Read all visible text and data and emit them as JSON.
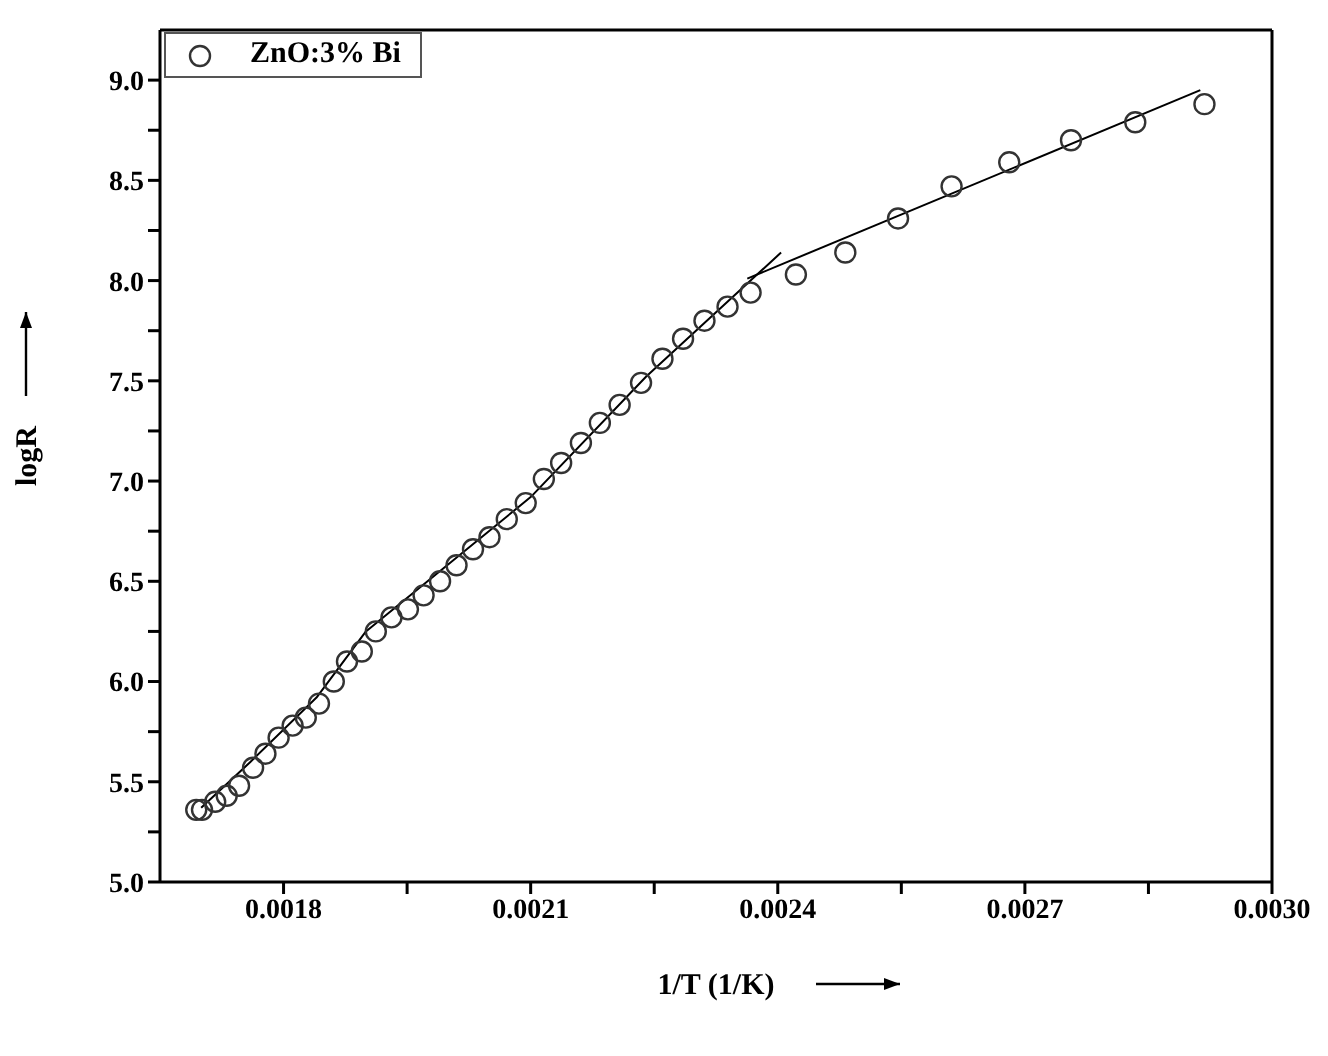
{
  "chart_data": {
    "type": "scatter",
    "xlabel": "1/T (1/K)",
    "ylabel": "logR",
    "legend": "top left",
    "marker": "circle",
    "xlim": [
      0.00165,
      0.003
    ],
    "xticks": [
      0.0018,
      {
        "value": 0.00195,
        "label": null
      },
      0.0021,
      {
        "value": 0.00225,
        "label": null
      },
      0.0024,
      {
        "value": 0.00255,
        "label": null
      },
      0.0027,
      {
        "value": 0.00285,
        "label": null
      },
      {
        "value": 0.003,
        "label": "0.0030"
      }
    ],
    "ylim": [
      5,
      9.25
    ],
    "yticks": [
      {
        "value": 5,
        "label": "5.0"
      },
      {
        "value": 5.25,
        "label": null
      },
      5.5,
      {
        "value": 5.75,
        "label": null
      },
      {
        "value": 6,
        "label": "6.0"
      },
      {
        "value": 6.25,
        "label": null
      },
      6.5,
      {
        "value": 6.75,
        "label": null
      },
      {
        "value": 7,
        "label": "7.0"
      },
      {
        "value": 7.25,
        "label": null
      },
      7.5,
      {
        "value": 7.75,
        "label": null
      },
      {
        "value": 8,
        "label": "8.0"
      },
      {
        "value": 8.25,
        "label": null
      },
      8.5,
      {
        "value": 8.75,
        "label": null
      },
      {
        "value": 9,
        "label": "9.0"
      }
    ],
    "series": [
      {
        "name": "ZnO:3% Bi",
        "color": "#333333",
        "x": [
          0.001694,
          0.001701,
          0.001717,
          0.001731,
          0.001746,
          0.001763,
          0.001778,
          0.001794,
          0.001811,
          0.001827,
          0.001843,
          0.001861,
          0.001877,
          0.001895,
          0.001912,
          0.001931,
          0.001951,
          0.00197,
          0.00199,
          0.00201,
          0.00203,
          0.00205,
          0.002071,
          0.002094,
          0.002116,
          0.002137,
          0.002161,
          0.002184,
          0.002208,
          0.002234,
          0.00226,
          0.002285,
          0.002311,
          0.002339,
          0.002367,
          0.002422,
          0.002482,
          0.002546,
          0.002611,
          0.002681,
          0.002756,
          0.002834,
          0.002918
        ],
        "values": [
          5.36,
          5.36,
          5.4,
          5.43,
          5.48,
          5.57,
          5.64,
          5.72,
          5.78,
          5.82,
          5.89,
          6.0,
          6.1,
          6.15,
          6.25,
          6.32,
          6.36,
          6.43,
          6.5,
          6.58,
          6.66,
          6.72,
          6.81,
          6.89,
          7.01,
          7.09,
          7.19,
          7.29,
          7.38,
          7.49,
          7.61,
          7.71,
          7.8,
          7.87,
          7.94,
          8.03,
          8.14,
          8.31,
          8.47,
          8.59,
          8.7,
          8.79,
          8.88
        ]
      },
      {
        "type": "line",
        "marker": "none",
        "color": "#000000",
        "x": [
          0.0017,
          0.00176,
          0.00184,
          0.0019,
          0.0021,
          0.00224,
          0.002404
        ],
        "values": [
          5.37,
          5.6,
          5.92,
          6.25,
          6.92,
          7.52,
          8.14
        ]
      },
      {
        "type": "line",
        "marker": "none",
        "color": "#000000",
        "x": [
          0.002363,
          0.002913
        ],
        "values": [
          8.01,
          8.95
        ]
      }
    ]
  }
}
